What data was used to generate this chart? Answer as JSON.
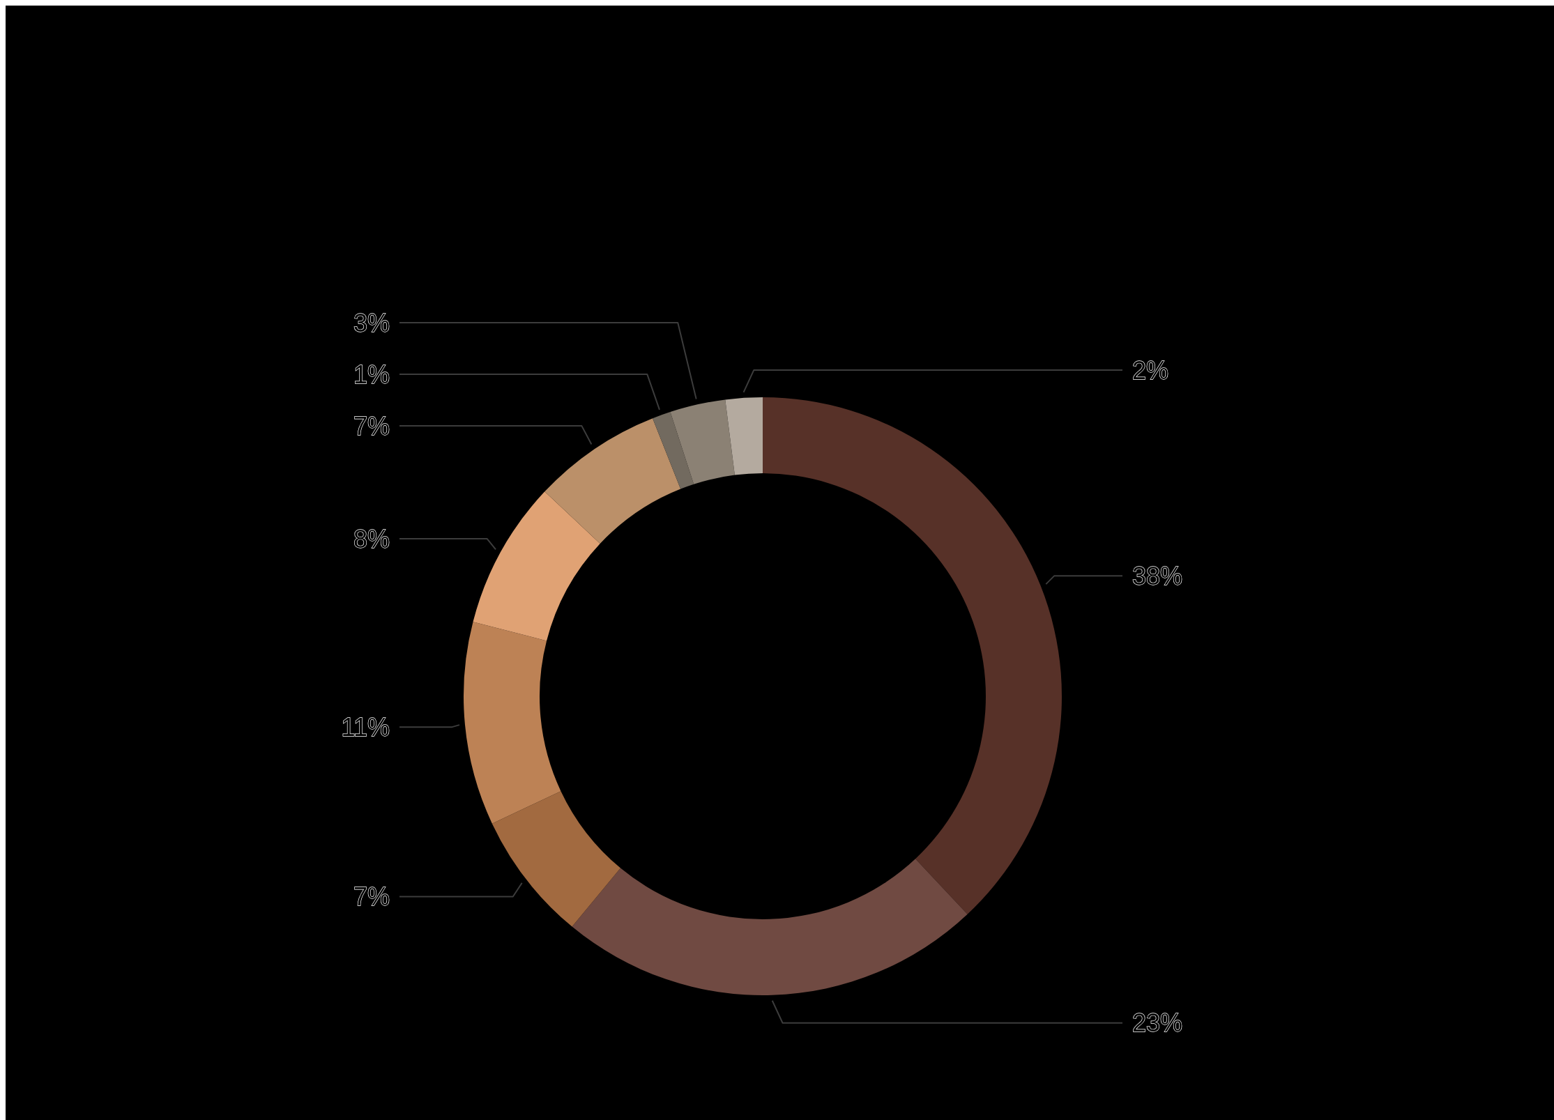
{
  "chart_data": {
    "type": "donut",
    "categories": [
      null,
      null,
      null,
      null,
      null,
      null,
      null,
      null,
      null
    ],
    "values": [
      38,
      23,
      7,
      11,
      8,
      7,
      1,
      3,
      2
    ],
    "colors": [
      "#573128",
      "#704a42",
      "#a26a40",
      "#bd8255",
      "#e0a274",
      "#bb9069",
      "#726a5f",
      "#8b8174",
      "#b4aa9f"
    ],
    "value_labels": [
      "38%",
      "23%",
      "7%",
      "11%",
      "8%",
      "7%",
      "1%",
      "3%",
      "2%"
    ]
  }
}
